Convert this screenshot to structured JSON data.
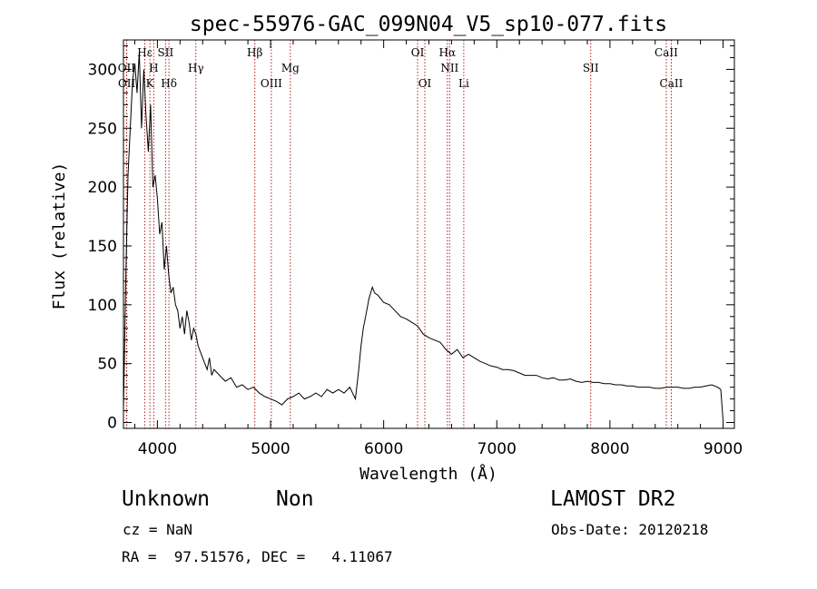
{
  "chart_data": {
    "type": "line",
    "title": "spec-55976-GAC_099N04_V5_sp10-077.fits",
    "xlabel": "Wavelength (Å)",
    "ylabel": "Flux (relative)",
    "xlim": [
      3700,
      9100
    ],
    "ylim": [
      -5,
      325
    ],
    "xticks": [
      4000,
      5000,
      6000,
      7000,
      8000,
      9000
    ],
    "yticks": [
      0,
      50,
      100,
      150,
      200,
      250,
      300
    ],
    "grid": false,
    "line_color": "#000000",
    "marker_color": "#b22222",
    "spectral_lines": [
      {
        "name": "Hε",
        "wavelength": 3889,
        "row": 0
      },
      {
        "name": "OII",
        "wavelength": 3727,
        "row": 1
      },
      {
        "name": "OII",
        "wavelength": 3729,
        "row": 2
      },
      {
        "name": "H",
        "wavelength": 3968,
        "row": 1
      },
      {
        "name": "K",
        "wavelength": 3934,
        "row": 2
      },
      {
        "name": "SII",
        "wavelength": 4072,
        "row": 0
      },
      {
        "name": "Hδ",
        "wavelength": 4102,
        "row": 2
      },
      {
        "name": "Hγ",
        "wavelength": 4340,
        "row": 1
      },
      {
        "name": "Hβ",
        "wavelength": 4861,
        "row": 0
      },
      {
        "name": "OIII",
        "wavelength": 5007,
        "row": 2
      },
      {
        "name": "Mg",
        "wavelength": 5175,
        "row": 1
      },
      {
        "name": "OI",
        "wavelength": 6300,
        "row": 0
      },
      {
        "name": "OI",
        "wavelength": 6364,
        "row": 2
      },
      {
        "name": "Hα",
        "wavelength": 6563,
        "row": 0
      },
      {
        "name": "NII",
        "wavelength": 6583,
        "row": 1
      },
      {
        "name": "Li",
        "wavelength": 6708,
        "row": 2
      },
      {
        "name": "SII",
        "wavelength": 7830,
        "row": 1
      },
      {
        "name": "CaII",
        "wavelength": 8498,
        "row": 0
      },
      {
        "name": "CaII",
        "wavelength": 8542,
        "row": 2
      }
    ],
    "series": [
      {
        "x": [
          3700,
          3720,
          3740,
          3760,
          3780,
          3800,
          3820,
          3840,
          3860,
          3880,
          3900,
          3920,
          3940,
          3960,
          3980,
          4000,
          4020,
          4040,
          4060,
          4080,
          4100,
          4120,
          4140,
          4160,
          4180,
          4200,
          4220,
          4240,
          4260,
          4280,
          4300,
          4320,
          4340,
          4360,
          4380,
          4400,
          4420,
          4440,
          4460,
          4480,
          4500,
          4550,
          4600,
          4650,
          4700,
          4750,
          4800,
          4850,
          4900,
          4950,
          5000,
          5050,
          5100,
          5150,
          5200,
          5250,
          5300,
          5350,
          5400,
          5450,
          5500,
          5550,
          5600,
          5650,
          5700,
          5750,
          5780,
          5800,
          5820,
          5850,
          5870,
          5900,
          5920,
          5950,
          6000,
          6050,
          6100,
          6150,
          6200,
          6250,
          6300,
          6350,
          6400,
          6450,
          6500,
          6550,
          6600,
          6650,
          6700,
          6750,
          6800,
          6850,
          6900,
          6950,
          7000,
          7050,
          7100,
          7150,
          7200,
          7250,
          7300,
          7350,
          7400,
          7450,
          7500,
          7550,
          7600,
          7650,
          7700,
          7750,
          7800,
          7850,
          7900,
          7950,
          8000,
          8050,
          8100,
          8150,
          8200,
          8250,
          8300,
          8350,
          8400,
          8450,
          8500,
          8550,
          8600,
          8650,
          8700,
          8750,
          8800,
          8850,
          8900,
          8950,
          8980,
          9000
        ],
        "y": [
          10,
          120,
          210,
          250,
          290,
          305,
          280,
          315,
          250,
          300,
          260,
          230,
          270,
          200,
          210,
          190,
          160,
          170,
          130,
          150,
          125,
          110,
          115,
          100,
          95,
          80,
          90,
          75,
          95,
          85,
          70,
          80,
          75,
          65,
          60,
          55,
          50,
          45,
          55,
          40,
          45,
          40,
          35,
          38,
          30,
          32,
          28,
          30,
          25,
          22,
          20,
          18,
          15,
          20,
          22,
          25,
          20,
          22,
          25,
          22,
          28,
          25,
          28,
          25,
          30,
          20,
          45,
          65,
          80,
          95,
          105,
          115,
          110,
          108,
          102,
          100,
          95,
          90,
          88,
          85,
          82,
          75,
          72,
          70,
          68,
          62,
          58,
          62,
          55,
          58,
          55,
          52,
          50,
          48,
          47,
          45,
          45,
          44,
          42,
          40,
          40,
          40,
          38,
          37,
          38,
          36,
          36,
          37,
          35,
          34,
          35,
          34,
          34,
          33,
          33,
          32,
          32,
          31,
          31,
          30,
          30,
          30,
          29,
          29,
          30,
          30,
          30,
          29,
          29,
          30,
          30,
          31,
          32,
          30,
          28,
          2
        ]
      }
    ]
  },
  "footer": {
    "object_class": "Unknown",
    "object_subclass": "Non",
    "survey": "LAMOST DR2",
    "cz": "cz = NaN",
    "obs_date": "Obs-Date: 20120218",
    "coords": "RA =  97.51576, DEC =   4.11067"
  }
}
